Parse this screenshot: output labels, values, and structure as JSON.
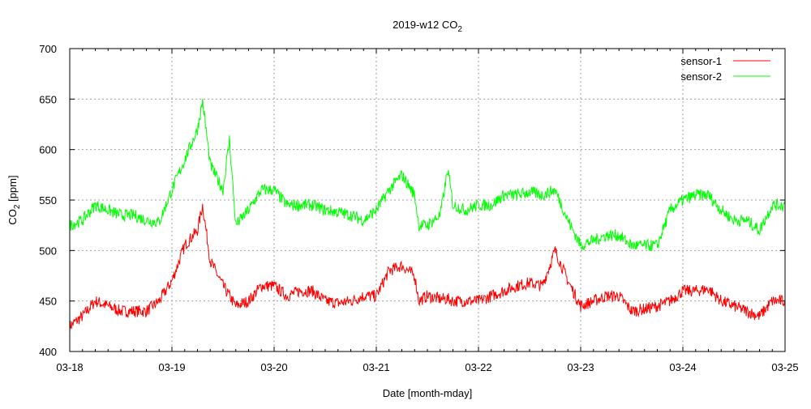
{
  "chart_data": {
    "type": "line",
    "title": {
      "text": "2019-w12 CO",
      "sub": "2"
    },
    "xlabel": "Date [month-mday]",
    "ylabel": {
      "text": "CO",
      "sub": "2",
      "rest": " [ppm]"
    },
    "ylim": [
      400,
      700
    ],
    "yticks": [
      400,
      450,
      500,
      550,
      600,
      650,
      700
    ],
    "xlim": [
      "03-18 00:00",
      "03-25 00:00"
    ],
    "xticks": [
      "03-18",
      "03-19",
      "03-20",
      "03-21",
      "03-22",
      "03-23",
      "03-24",
      "03-25"
    ],
    "minor_xtick_hours": 3,
    "grid": true,
    "legend_position": "top-right",
    "series": [
      {
        "name": "sensor-1",
        "color": "#ff0000",
        "x": [
          "03-18 00:00",
          "03-18 03:00",
          "03-18 06:00",
          "03-18 09:00",
          "03-18 12:00",
          "03-18 15:00",
          "03-18 18:00",
          "03-18 21:00",
          "03-19 00:00",
          "03-19 03:00",
          "03-19 06:00",
          "03-19 07:12",
          "03-19 09:00",
          "03-19 12:00",
          "03-19 13:30",
          "03-19 15:00",
          "03-19 18:00",
          "03-19 21:00",
          "03-20 00:00",
          "03-20 03:00",
          "03-20 06:00",
          "03-20 09:00",
          "03-20 12:00",
          "03-20 15:00",
          "03-20 18:00",
          "03-20 21:00",
          "03-21 00:00",
          "03-21 03:00",
          "03-21 06:00",
          "03-21 09:00",
          "03-21 10:00",
          "03-21 12:00",
          "03-21 15:00",
          "03-21 16:48",
          "03-21 18:00",
          "03-21 21:00",
          "03-22 00:00",
          "03-22 03:00",
          "03-22 06:00",
          "03-22 09:00",
          "03-22 12:00",
          "03-22 15:00",
          "03-22 18:00",
          "03-22 21:00",
          "03-23 00:00",
          "03-23 03:00",
          "03-23 06:00",
          "03-23 09:00",
          "03-23 12:00",
          "03-23 15:00",
          "03-23 18:00",
          "03-23 21:00",
          "03-24 00:00",
          "03-24 03:00",
          "03-24 06:00",
          "03-24 09:00",
          "03-24 12:00",
          "03-24 15:00",
          "03-24 18:00",
          "03-24 21:00",
          "03-25 00:00"
        ],
        "y": [
          425,
          435,
          450,
          445,
          440,
          440,
          440,
          450,
          470,
          505,
          520,
          545,
          490,
          465,
          455,
          445,
          450,
          465,
          465,
          455,
          460,
          460,
          450,
          448,
          450,
          455,
          455,
          480,
          485,
          475,
          450,
          455,
          452,
          452,
          450,
          450,
          450,
          455,
          460,
          465,
          468,
          465,
          500,
          470,
          445,
          450,
          455,
          455,
          440,
          442,
          445,
          450,
          460,
          460,
          462,
          450,
          445,
          440,
          435,
          450,
          450
        ]
      },
      {
        "name": "sensor-2",
        "color": "#00ff00",
        "x": [
          "03-18 00:00",
          "03-18 03:00",
          "03-18 06:00",
          "03-18 09:00",
          "03-18 12:00",
          "03-18 15:00",
          "03-18 18:00",
          "03-18 21:00",
          "03-19 00:00",
          "03-19 03:00",
          "03-19 06:00",
          "03-19 07:12",
          "03-19 09:00",
          "03-19 12:00",
          "03-19 13:30",
          "03-19 15:00",
          "03-19 18:00",
          "03-19 21:00",
          "03-20 00:00",
          "03-20 03:00",
          "03-20 06:00",
          "03-20 09:00",
          "03-20 12:00",
          "03-20 15:00",
          "03-20 18:00",
          "03-20 21:00",
          "03-21 00:00",
          "03-21 03:00",
          "03-21 06:00",
          "03-21 09:00",
          "03-21 10:00",
          "03-21 12:00",
          "03-21 15:00",
          "03-21 16:48",
          "03-21 18:00",
          "03-21 21:00",
          "03-22 00:00",
          "03-22 03:00",
          "03-22 06:00",
          "03-22 09:00",
          "03-22 12:00",
          "03-22 15:00",
          "03-22 18:00",
          "03-22 21:00",
          "03-23 00:00",
          "03-23 03:00",
          "03-23 06:00",
          "03-23 09:00",
          "03-23 12:00",
          "03-23 15:00",
          "03-23 18:00",
          "03-23 21:00",
          "03-24 00:00",
          "03-24 03:00",
          "03-24 06:00",
          "03-24 09:00",
          "03-24 12:00",
          "03-24 15:00",
          "03-24 18:00",
          "03-24 21:00",
          "03-25 00:00"
        ],
        "y": [
          525,
          530,
          545,
          540,
          535,
          535,
          530,
          528,
          560,
          590,
          620,
          648,
          585,
          560,
          610,
          525,
          540,
          560,
          560,
          545,
          545,
          545,
          540,
          538,
          535,
          530,
          540,
          560,
          575,
          555,
          525,
          525,
          535,
          580,
          545,
          540,
          545,
          545,
          555,
          555,
          558,
          555,
          560,
          530,
          505,
          510,
          515,
          515,
          505,
          505,
          505,
          540,
          550,
          555,
          555,
          540,
          530,
          530,
          520,
          545,
          545
        ]
      }
    ]
  }
}
